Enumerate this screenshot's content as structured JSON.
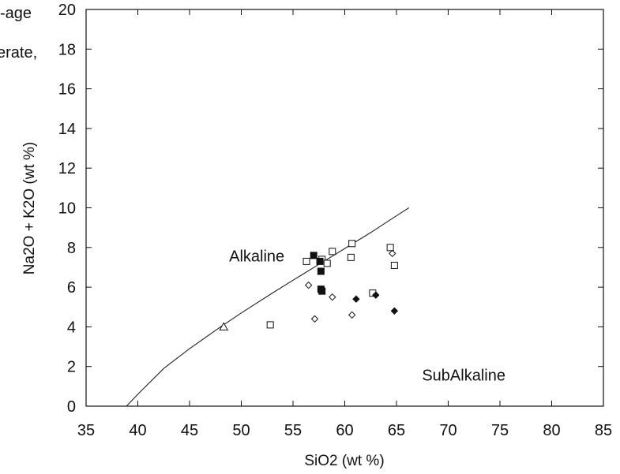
{
  "chart_data": {
    "type": "scatter",
    "xlabel": "SiO2  (wt %)",
    "ylabel": "Na2O + K2O  (wt %)",
    "xlim": [
      35,
      85
    ],
    "ylim": [
      0,
      20
    ],
    "x_ticks": [
      "35",
      "40",
      "45",
      "50",
      "55",
      "60",
      "65",
      "70",
      "75",
      "80",
      "85"
    ],
    "y_ticks": [
      "0",
      "2",
      "4",
      "6",
      "8",
      "10",
      "12",
      "14",
      "16",
      "18",
      "20"
    ],
    "legend_fragments": [
      "-age",
      "erate,"
    ],
    "annotations": [
      {
        "text": "Alkaline",
        "x": 51.5,
        "y": 7.3
      },
      {
        "text": "SubAlkaline",
        "x": 71.5,
        "y": 1.3
      }
    ],
    "divider_line": {
      "x": [
        38.9,
        40.0,
        42.5,
        45.0,
        48.0,
        50.0,
        53.0,
        55.0,
        57.5,
        60.0,
        62.5,
        65.0,
        66.2
      ],
      "y": [
        0.0,
        0.6,
        1.9,
        2.9,
        4.0,
        4.7,
        5.7,
        6.35,
        7.15,
        7.95,
        8.75,
        9.6,
        10.0
      ]
    },
    "series": [
      {
        "marker": "open-square",
        "x": [
          52.8,
          56.3,
          57.8,
          58.3,
          58.8,
          60.6,
          60.7,
          62.7,
          64.4,
          64.8
        ],
        "y": [
          4.1,
          7.3,
          7.4,
          7.2,
          7.8,
          7.5,
          8.2,
          5.7,
          8.0,
          7.1
        ]
      },
      {
        "marker": "filled-square",
        "x": [
          57.0,
          57.6,
          57.7,
          57.7,
          57.8
        ],
        "y": [
          7.6,
          7.3,
          6.8,
          5.9,
          5.8
        ]
      },
      {
        "marker": "open-diamond",
        "x": [
          56.5,
          57.1,
          58.8,
          60.7,
          64.6
        ],
        "y": [
          6.1,
          4.4,
          5.5,
          4.6,
          7.7
        ]
      },
      {
        "marker": "filled-diamond",
        "x": [
          61.1,
          63.0,
          64.8
        ],
        "y": [
          5.4,
          5.6,
          4.8
        ]
      },
      {
        "marker": "open-triangle",
        "x": [
          48.3
        ],
        "y": [
          4.0
        ]
      }
    ]
  }
}
